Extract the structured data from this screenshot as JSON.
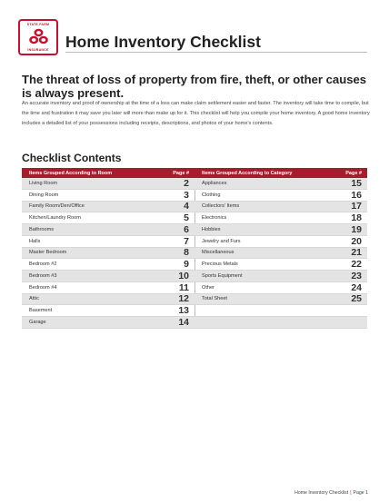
{
  "logo": {
    "brand_top": "STATE FARM",
    "brand_bottom": "INSURANCE"
  },
  "header": {
    "title": "Home Inventory Checklist"
  },
  "intro": {
    "headline": "The threat of loss of property from fire, theft, or other causes is always present.",
    "body": "An accurate inventory and proof of ownership at the time of a loss can make claim settlement easier and faster. The inventory will take time to compile, but the time and frustration it may save you later will more than make up for it.  This checklist will help you compile your home inventory.  A good home inventory includes a detailed list of your possessions including receipts, descriptions, and photos of your home's contents."
  },
  "checklist": {
    "title": "Checklist Contents",
    "room_table": {
      "header_label": "Items Grouped According to Room",
      "header_page": "Page #",
      "rows": [
        {
          "name": "Living Room",
          "page": "2"
        },
        {
          "name": "Dining Room",
          "page": "3"
        },
        {
          "name": "Family Room/Den/Office",
          "page": "4"
        },
        {
          "name": "Kitchen/Laundry Room",
          "page": "5"
        },
        {
          "name": "Bathrooms",
          "page": "6"
        },
        {
          "name": "Halls",
          "page": "7"
        },
        {
          "name": "Master Bedroom",
          "page": "8"
        },
        {
          "name": "Bedroom #2",
          "page": "9"
        },
        {
          "name": "Bedroom #3",
          "page": "10"
        },
        {
          "name": "Bedroom #4",
          "page": "11"
        },
        {
          "name": "Attic",
          "page": "12"
        },
        {
          "name": "Basement",
          "page": "13"
        },
        {
          "name": "Garage",
          "page": "14"
        }
      ]
    },
    "category_table": {
      "header_label": "Items Grouped According to Category",
      "header_page": "Page #",
      "rows": [
        {
          "name": "Appliances",
          "page": "15"
        },
        {
          "name": "Clothing",
          "page": "16"
        },
        {
          "name": "Collectors' Items",
          "page": "17"
        },
        {
          "name": "Electronics",
          "page": "18"
        },
        {
          "name": "Hobbies",
          "page": "19"
        },
        {
          "name": "Jewelry and Furs",
          "page": "20"
        },
        {
          "name": "Miscellaneous",
          "page": "21"
        },
        {
          "name": "Precious Metals",
          "page": "22"
        },
        {
          "name": "Sports Equipment",
          "page": "23"
        },
        {
          "name": "Other",
          "page": "24"
        },
        {
          "name": " Total Sheet",
          "page": "25"
        },
        {
          "name": "",
          "page": ""
        },
        {
          "name": "",
          "page": ""
        }
      ]
    }
  },
  "footer": {
    "doc_name": "Home Inventory Checklist",
    "separator": "|",
    "page_label": "Page 1"
  },
  "colors": {
    "brand_red": "#c8102e",
    "table_header": "#a51d2d",
    "row_shade": "#e4e4e4"
  },
  "icons": {
    "logo": "state-farm-three-ovals-logo"
  }
}
